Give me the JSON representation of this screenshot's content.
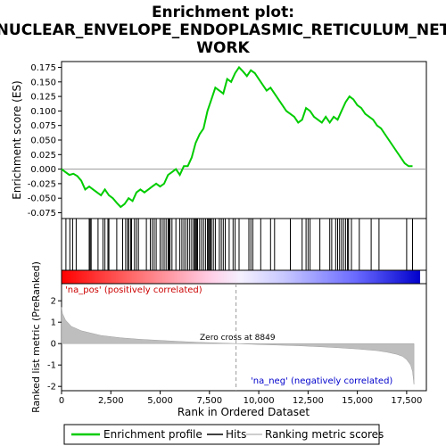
{
  "title": {
    "line1": "Enrichment plot:",
    "line2": "NUCLEAR_ENVELOPE_ENDOPLASMIC_RETICULUM_NET",
    "line3": "WORK"
  },
  "colors": {
    "es_line": "#00cc00",
    "hits": "#000000",
    "metric_fill": "#bebebe",
    "zero_line": "#999999",
    "pos_color": "#ff0000",
    "neg_color": "#0000ff"
  },
  "chart_data": {
    "type": "line",
    "es_panel": {
      "ylabel": "Enrichment score (ES)",
      "ylim": [
        -0.085,
        0.185
      ],
      "yticks": [
        -0.075,
        -0.05,
        -0.025,
        0.0,
        0.025,
        0.05,
        0.075,
        0.1,
        0.125,
        0.15,
        0.175
      ],
      "ytick_labels": [
        "-0.075",
        "-0.050",
        "-0.025",
        "0.000",
        "0.025",
        "0.050",
        "0.075",
        "0.100",
        "0.125",
        "0.150",
        "0.175"
      ],
      "x": [
        0,
        200,
        400,
        600,
        800,
        1000,
        1200,
        1400,
        1600,
        1800,
        2000,
        2200,
        2400,
        2600,
        2800,
        3000,
        3200,
        3400,
        3600,
        3800,
        4000,
        4200,
        4400,
        4600,
        4800,
        5000,
        5200,
        5400,
        5600,
        5800,
        6000,
        6200,
        6400,
        6600,
        6800,
        7000,
        7200,
        7400,
        7600,
        7800,
        8000,
        8200,
        8400,
        8600,
        8800,
        9000,
        9200,
        9400,
        9600,
        9800,
        10000,
        10200,
        10400,
        10600,
        10800,
        11000,
        11200,
        11400,
        11600,
        11800,
        12000,
        12200,
        12400,
        12600,
        12800,
        13000,
        13200,
        13400,
        13600,
        13800,
        14000,
        14200,
        14400,
        14600,
        14800,
        15000,
        15200,
        15400,
        15600,
        15800,
        16000,
        16200,
        16400,
        16600,
        16800,
        17000,
        17200,
        17400,
        17600,
        17800
      ],
      "es": [
        0.0,
        -0.005,
        -0.01,
        -0.008,
        -0.012,
        -0.02,
        -0.035,
        -0.03,
        -0.035,
        -0.04,
        -0.045,
        -0.035,
        -0.045,
        -0.05,
        -0.058,
        -0.065,
        -0.06,
        -0.05,
        -0.055,
        -0.04,
        -0.035,
        -0.04,
        -0.035,
        -0.03,
        -0.025,
        -0.03,
        -0.025,
        -0.01,
        -0.005,
        0.0,
        -0.01,
        0.005,
        0.005,
        0.02,
        0.045,
        0.06,
        0.07,
        0.1,
        0.12,
        0.14,
        0.135,
        0.13,
        0.155,
        0.15,
        0.165,
        0.175,
        0.168,
        0.16,
        0.17,
        0.165,
        0.155,
        0.145,
        0.135,
        0.14,
        0.13,
        0.12,
        0.11,
        0.1,
        0.095,
        0.09,
        0.08,
        0.085,
        0.105,
        0.1,
        0.09,
        0.085,
        0.08,
        0.09,
        0.08,
        0.09,
        0.085,
        0.1,
        0.115,
        0.125,
        0.12,
        0.11,
        0.105,
        0.095,
        0.09,
        0.085,
        0.075,
        0.07,
        0.06,
        0.05,
        0.04,
        0.03,
        0.02,
        0.01,
        0.005,
        0.005
      ]
    },
    "hits": [
      220,
      420,
      560,
      740,
      1400,
      1450,
      1500,
      1850,
      2100,
      2200,
      2350,
      2400,
      2800,
      3100,
      3250,
      3350,
      3400,
      3500,
      3550,
      3700,
      3800,
      3900,
      4300,
      4500,
      4600,
      4700,
      4800,
      5000,
      5100,
      5200,
      5300,
      5400,
      5450,
      5500,
      5600,
      5800,
      6000,
      6100,
      6200,
      6300,
      6400,
      6500,
      6600,
      6700,
      6750,
      6800,
      6850,
      6900,
      7000,
      7100,
      7200,
      7300,
      7400,
      7450,
      7500,
      7550,
      7600,
      7700,
      7800,
      8000,
      8100,
      8200,
      8300,
      8500,
      8700,
      8800,
      9000,
      9500,
      9600,
      9700,
      10100,
      10600,
      10800,
      11600,
      12200,
      12400,
      12500,
      12600,
      13100,
      13600,
      13700,
      13900,
      14000,
      14100,
      14200,
      14300,
      14400,
      14500,
      14550,
      14700,
      15100,
      15700,
      16100,
      17500,
      17800
    ],
    "metric_panel": {
      "ylabel": "Ranked list metric (PreRanked)",
      "ylim": [
        -2.2,
        2.8
      ],
      "yticks": [
        -2,
        -1,
        0,
        1,
        2
      ],
      "ytick_labels": [
        "-2",
        "-1",
        "0",
        "1",
        "2"
      ],
      "x": [
        0,
        50,
        200,
        500,
        1000,
        2000,
        3000,
        4000,
        5000,
        6000,
        7000,
        8000,
        8849,
        10000,
        11000,
        12000,
        13000,
        14000,
        15000,
        16000,
        16500,
        17000,
        17300,
        17500,
        17700,
        17800,
        17870
      ],
      "metric": [
        1.7,
        1.4,
        1.1,
        0.8,
        0.6,
        0.38,
        0.27,
        0.2,
        0.15,
        0.1,
        0.06,
        0.03,
        0.0,
        -0.04,
        -0.07,
        -0.1,
        -0.14,
        -0.19,
        -0.25,
        -0.33,
        -0.4,
        -0.5,
        -0.6,
        -0.75,
        -1.0,
        -1.3,
        -1.9
      ]
    },
    "xlabel": "Rank in Ordered Dataset",
    "xlim": [
      0,
      18500
    ],
    "xticks": [
      0,
      2500,
      5000,
      7500,
      10000,
      12500,
      15000,
      17500
    ],
    "xtick_labels": [
      "0",
      "2,500",
      "5,000",
      "7,500",
      "10,000",
      "12,500",
      "15,000",
      "17,500"
    ],
    "zero_cross": 8849,
    "n_genes": 17870
  },
  "annotations": {
    "pos_label": "'na_pos' (positively correlated)",
    "neg_label": "'na_neg' (negatively correlated)",
    "zero_cross_label": "Zero cross at 8849"
  },
  "legend": {
    "items": [
      {
        "label": "Enrichment profile",
        "kind": "es"
      },
      {
        "label": "Hits",
        "kind": "hits"
      },
      {
        "label": "Ranking metric scores",
        "kind": "metric"
      }
    ]
  }
}
